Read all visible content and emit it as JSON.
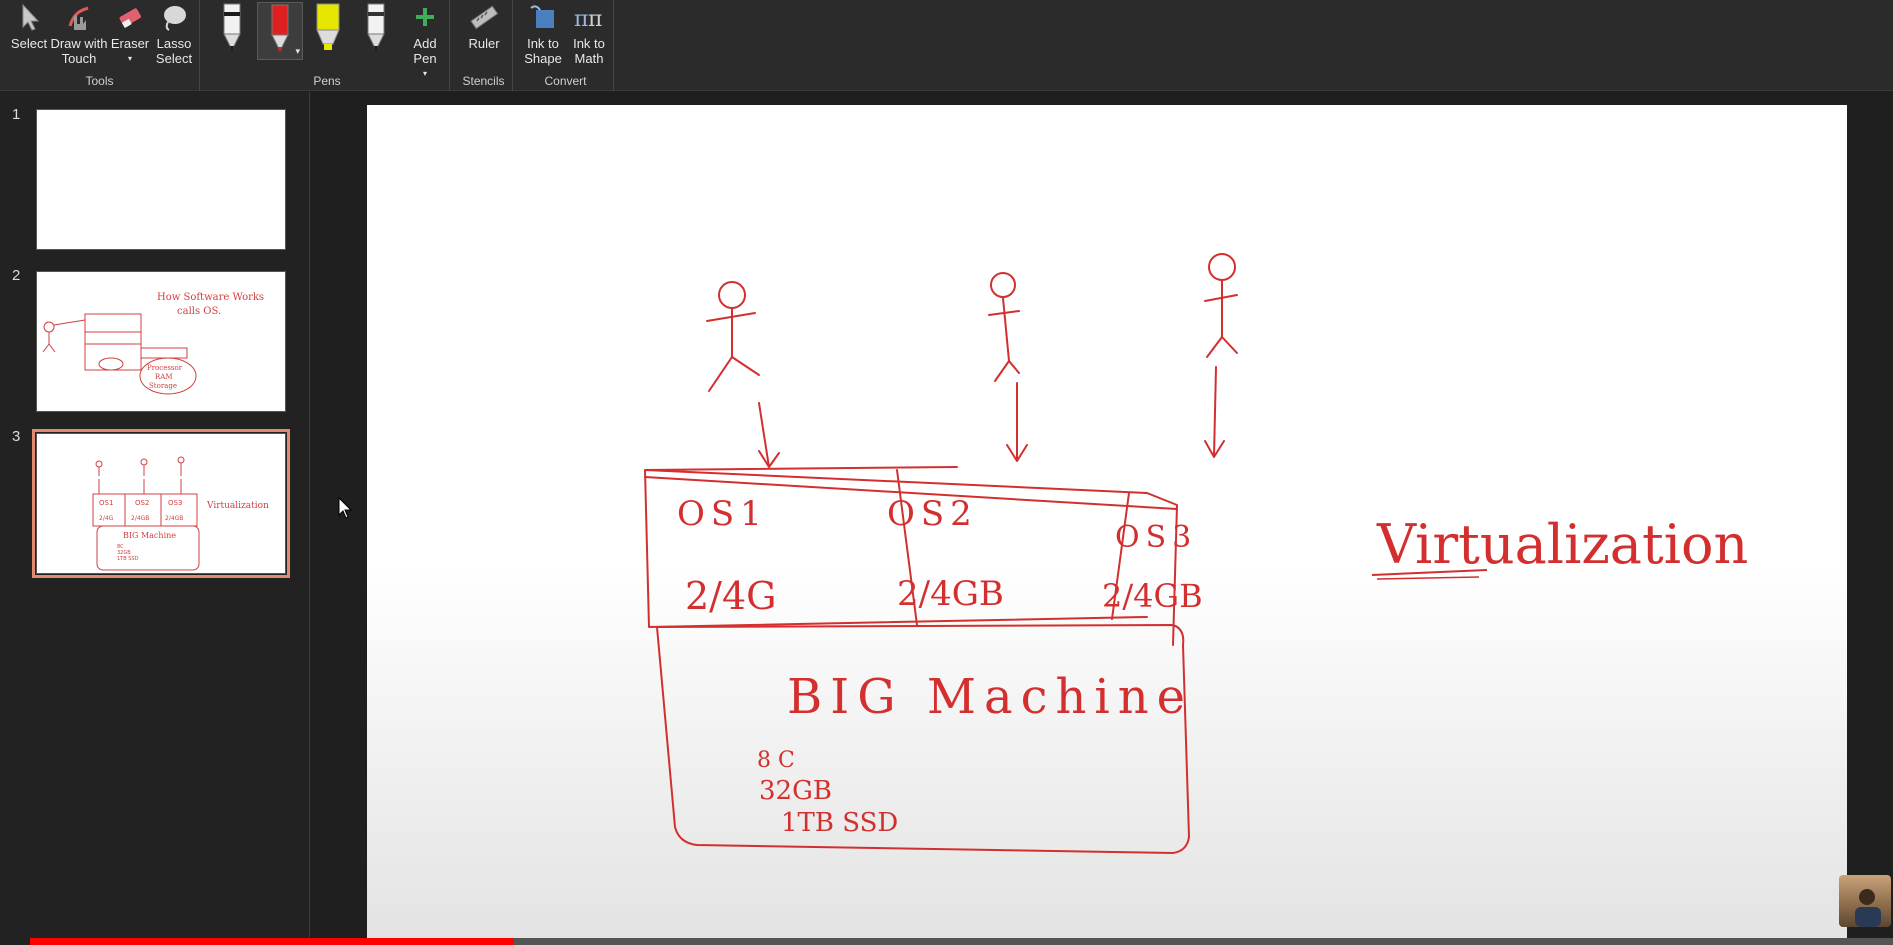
{
  "ribbon": {
    "tools": {
      "group_label": "Tools",
      "select": "Select",
      "draw_with_touch": "Draw with Touch",
      "eraser": "Eraser",
      "lasso_select": "Lasso Select"
    },
    "pens": {
      "group_label": "Pens",
      "add_pen": "Add Pen",
      "items": [
        {
          "name": "black pen",
          "color": "#1a1a1a"
        },
        {
          "name": "red pen",
          "color": "#e02020"
        },
        {
          "name": "yellow highlighter",
          "color": "#e6e600"
        },
        {
          "name": "black pen 2",
          "color": "#1a1a1a"
        }
      ]
    },
    "stencils": {
      "group_label": "Stencils",
      "ruler": "Ruler"
    },
    "convert": {
      "group_label": "Convert",
      "ink_to_shape": "Ink to Shape",
      "ink_to_math": "Ink to Math"
    }
  },
  "thumbnails": [
    {
      "number": "1",
      "selected": false
    },
    {
      "number": "2",
      "selected": false,
      "text_lines": [
        "How Software Works",
        "calls OS.",
        "Processor",
        "RAM",
        "Storage"
      ]
    },
    {
      "number": "3",
      "selected": true,
      "text_lines": [
        "OS1",
        "OS2",
        "OS3",
        "2/4G",
        "2/4GB",
        "2/4GB",
        "BIG Machine",
        "8C",
        "32GB",
        "1TB SSD",
        "Virtualization"
      ]
    }
  ],
  "slide": {
    "ink_texts": {
      "os1": "OS1",
      "os2": "OS2",
      "os3": "OS3",
      "mem1": "2/4G",
      "mem2": "2/4GB",
      "mem3": "2/4GB",
      "big_machine": "BIG Machine",
      "cores": "8 C",
      "ram": "32GB",
      "storage": "1TB SSD",
      "virtualization": "Virtualization"
    },
    "ink_color": "#d32f2f"
  },
  "video": {
    "progress": 0.26
  }
}
